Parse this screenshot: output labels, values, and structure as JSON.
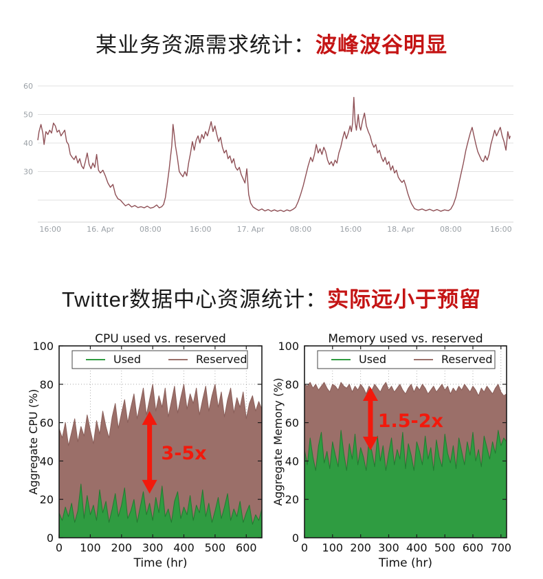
{
  "page": {
    "background": "#ffffff"
  },
  "section1": {
    "title_prefix": "某业务资源需求统计：",
    "title_highlight": "波峰波谷明显",
    "highlight_color": "#c41414"
  },
  "section2": {
    "title_prefix": "Twitter数据中心资源统计：",
    "title_highlight": "实际远小于预留",
    "highlight_color": "#c41414"
  },
  "chart_data": [
    {
      "type": "line",
      "name": "business-resource-demand",
      "line_color": "#8e4f55",
      "grid_color": "#e2e2e2",
      "axis_label_color": "#9aa0a6",
      "y_grid": [
        20,
        30,
        40,
        50,
        60
      ],
      "y_labeled": [
        30,
        40,
        50,
        60
      ],
      "y_range": [
        12.3,
        60
      ],
      "x_range": [
        0,
        76
      ],
      "x_ticks": [
        {
          "t": 2,
          "label": "16:00"
        },
        {
          "t": 10,
          "label": "16. Apr"
        },
        {
          "t": 18,
          "label": "08:00"
        },
        {
          "t": 26,
          "label": "16:00"
        },
        {
          "t": 34,
          "label": "17. Apr"
        },
        {
          "t": 42,
          "label": "08:00"
        },
        {
          "t": 50,
          "label": "16:00"
        },
        {
          "t": 58,
          "label": "18. Apr"
        },
        {
          "t": 66,
          "label": "08:00"
        },
        {
          "t": 74,
          "label": "16:00"
        }
      ],
      "points": [
        [
          0,
          41
        ],
        [
          0.2,
          44
        ],
        [
          0.5,
          46.5
        ],
        [
          0.8,
          43.5
        ],
        [
          1,
          39.5
        ],
        [
          1.3,
          44
        ],
        [
          1.6,
          43
        ],
        [
          1.9,
          44.5
        ],
        [
          2.2,
          43.5
        ],
        [
          2.5,
          47
        ],
        [
          2.8,
          46
        ],
        [
          3.1,
          43.8
        ],
        [
          3.4,
          44.5
        ],
        [
          3.7,
          42.5
        ],
        [
          4,
          43.5
        ],
        [
          4.3,
          44.5
        ],
        [
          4.6,
          40.5
        ],
        [
          4.9,
          39.5
        ],
        [
          5.2,
          36
        ],
        [
          5.5,
          35
        ],
        [
          5.8,
          34.2
        ],
        [
          6.1,
          35.5
        ],
        [
          6.4,
          33
        ],
        [
          6.7,
          34.5
        ],
        [
          7,
          32
        ],
        [
          7.3,
          31
        ],
        [
          7.6,
          33.5
        ],
        [
          7.9,
          36.5
        ],
        [
          8.2,
          32.5
        ],
        [
          8.5,
          31
        ],
        [
          8.8,
          33
        ],
        [
          9.1,
          31.5
        ],
        [
          9.4,
          36
        ],
        [
          9.7,
          30.5
        ],
        [
          10,
          29.5
        ],
        [
          10.4,
          30.5
        ],
        [
          10.8,
          28.5
        ],
        [
          11.2,
          26
        ],
        [
          11.6,
          24.5
        ],
        [
          12,
          25.5
        ],
        [
          12.4,
          22
        ],
        [
          12.8,
          20.5
        ],
        [
          13.2,
          20
        ],
        [
          13.6,
          19
        ],
        [
          14,
          18
        ],
        [
          14.5,
          18.6
        ],
        [
          15,
          17.6
        ],
        [
          15.5,
          18.1
        ],
        [
          16,
          17.4
        ],
        [
          16.5,
          17.7
        ],
        [
          17,
          17.3
        ],
        [
          17.5,
          17.9
        ],
        [
          18,
          17.2
        ],
        [
          18.5,
          17.5
        ],
        [
          19,
          18.3
        ],
        [
          19.4,
          17.3
        ],
        [
          19.8,
          17.7
        ],
        [
          20.1,
          18.5
        ],
        [
          20.4,
          21
        ],
        [
          20.7,
          26
        ],
        [
          21,
          31
        ],
        [
          21.2,
          35
        ],
        [
          21.4,
          39
        ],
        [
          21.6,
          46.5
        ],
        [
          21.8,
          43
        ],
        [
          22,
          39
        ],
        [
          22.3,
          35
        ],
        [
          22.6,
          30
        ],
        [
          22.9,
          29
        ],
        [
          23.2,
          28.2
        ],
        [
          23.5,
          30
        ],
        [
          23.8,
          28.5
        ],
        [
          24.1,
          33
        ],
        [
          24.4,
          36.5
        ],
        [
          24.7,
          40.5
        ],
        [
          25,
          37.5
        ],
        [
          25.3,
          41
        ],
        [
          25.6,
          42.5
        ],
        [
          25.9,
          40
        ],
        [
          26.2,
          43
        ],
        [
          26.5,
          41.5
        ],
        [
          26.8,
          44
        ],
        [
          27.1,
          42.5
        ],
        [
          27.4,
          45
        ],
        [
          27.7,
          47.5
        ],
        [
          28,
          44
        ],
        [
          28.3,
          46
        ],
        [
          28.6,
          43
        ],
        [
          28.9,
          40.5
        ],
        [
          29.2,
          42
        ],
        [
          29.5,
          38.5
        ],
        [
          29.8,
          36.5
        ],
        [
          30.1,
          37.5
        ],
        [
          30.4,
          34.5
        ],
        [
          30.7,
          35.5
        ],
        [
          31,
          33
        ],
        [
          31.3,
          34.5
        ],
        [
          31.6,
          31.5
        ],
        [
          31.9,
          30.5
        ],
        [
          32.2,
          31.5
        ],
        [
          32.5,
          29
        ],
        [
          32.8,
          27.5
        ],
        [
          33.1,
          26
        ],
        [
          33.4,
          31
        ],
        [
          33.7,
          22
        ],
        [
          34,
          19
        ],
        [
          34.4,
          17.6
        ],
        [
          34.8,
          17
        ],
        [
          35.3,
          16.4
        ],
        [
          35.8,
          16.9
        ],
        [
          36.3,
          16.2
        ],
        [
          36.8,
          16.7
        ],
        [
          37.3,
          16.1
        ],
        [
          37.8,
          16.6
        ],
        [
          38.3,
          16.1
        ],
        [
          38.8,
          16.5
        ],
        [
          39.3,
          16
        ],
        [
          39.8,
          16.6
        ],
        [
          40.3,
          16.2
        ],
        [
          40.8,
          16.8
        ],
        [
          41.2,
          17.5
        ],
        [
          41.6,
          19.5
        ],
        [
          42,
          22
        ],
        [
          42.4,
          25
        ],
        [
          42.8,
          28.5
        ],
        [
          43.2,
          32
        ],
        [
          43.6,
          35
        ],
        [
          43.9,
          33.5
        ],
        [
          44.2,
          36
        ],
        [
          44.5,
          39.5
        ],
        [
          44.8,
          36.5
        ],
        [
          45.1,
          38
        ],
        [
          45.4,
          36
        ],
        [
          45.7,
          38.5
        ],
        [
          46,
          37
        ],
        [
          46.3,
          34
        ],
        [
          46.6,
          32.5
        ],
        [
          46.9,
          33.5
        ],
        [
          47.2,
          32
        ],
        [
          47.5,
          34
        ],
        [
          47.8,
          33
        ],
        [
          48.1,
          36.5
        ],
        [
          48.4,
          38.5
        ],
        [
          48.7,
          41.5
        ],
        [
          49,
          44
        ],
        [
          49.3,
          41.5
        ],
        [
          49.6,
          43.5
        ],
        [
          49.9,
          46
        ],
        [
          50.1,
          44
        ],
        [
          50.3,
          47
        ],
        [
          50.5,
          56
        ],
        [
          50.7,
          47.5
        ],
        [
          50.9,
          44.5
        ],
        [
          51.2,
          50
        ],
        [
          51.4,
          46
        ],
        [
          51.6,
          44.5
        ],
        [
          51.9,
          48
        ],
        [
          52.2,
          50.5
        ],
        [
          52.5,
          46
        ],
        [
          52.8,
          44
        ],
        [
          53.1,
          42.5
        ],
        [
          53.4,
          40
        ],
        [
          53.7,
          38.5
        ],
        [
          54,
          39.5
        ],
        [
          54.3,
          36.5
        ],
        [
          54.6,
          37.5
        ],
        [
          54.9,
          35
        ],
        [
          55.2,
          33.5
        ],
        [
          55.5,
          35
        ],
        [
          55.8,
          32.5
        ],
        [
          56.1,
          33.5
        ],
        [
          56.4,
          30.5
        ],
        [
          56.7,
          32
        ],
        [
          57,
          29.5
        ],
        [
          57.3,
          30.5
        ],
        [
          57.6,
          28
        ],
        [
          57.9,
          27
        ],
        [
          58.2,
          26.2
        ],
        [
          58.5,
          27
        ],
        [
          58.8,
          25
        ],
        [
          59.1,
          22.5
        ],
        [
          59.4,
          20.5
        ],
        [
          59.7,
          18.8
        ],
        [
          60.2,
          17
        ],
        [
          60.8,
          16.5
        ],
        [
          61.4,
          16.9
        ],
        [
          62,
          16.3
        ],
        [
          62.6,
          16.8
        ],
        [
          63.2,
          16.2
        ],
        [
          63.8,
          16.7
        ],
        [
          64.4,
          16.1
        ],
        [
          65,
          16.6
        ],
        [
          65.6,
          16.3
        ],
        [
          66,
          16.9
        ],
        [
          66.4,
          18.5
        ],
        [
          66.8,
          21
        ],
        [
          67.2,
          25
        ],
        [
          67.6,
          29
        ],
        [
          68,
          33
        ],
        [
          68.4,
          37.5
        ],
        [
          68.8,
          41
        ],
        [
          69.1,
          43.5
        ],
        [
          69.4,
          45.5
        ],
        [
          69.7,
          42.5
        ],
        [
          70,
          39.5
        ],
        [
          70.3,
          37
        ],
        [
          70.6,
          35.5
        ],
        [
          70.9,
          34
        ],
        [
          71.2,
          33.5
        ],
        [
          71.5,
          35.5
        ],
        [
          71.8,
          34
        ],
        [
          72.1,
          36
        ],
        [
          72.4,
          39.5
        ],
        [
          72.7,
          42
        ],
        [
          73,
          44.5
        ],
        [
          73.3,
          42.5
        ],
        [
          73.6,
          44
        ],
        [
          73.9,
          45.5
        ],
        [
          74.2,
          42.5
        ],
        [
          74.5,
          40.5
        ],
        [
          74.8,
          37.5
        ],
        [
          75.1,
          44
        ],
        [
          75.35,
          41.5
        ],
        [
          75.5,
          42.5
        ]
      ]
    },
    {
      "type": "area",
      "name": "cpu-used-vs-reserved",
      "title": "CPU used vs. reserved",
      "xlabel": "Time (hr)",
      "ylabel": "Aggregate CPU (%)",
      "legend": [
        "Used",
        "Reserved"
      ],
      "x_ticks": [
        0,
        100,
        200,
        300,
        400,
        500,
        600
      ],
      "y_ticks": [
        0,
        20,
        40,
        60,
        80,
        100
      ],
      "x_range": [
        0,
        650
      ],
      "y_range": [
        0,
        100
      ],
      "x_step": 10,
      "series": [
        {
          "name": "Reserved",
          "color": "#9b6f69",
          "edge": "#8a5f5a",
          "values": [
            57,
            52,
            60,
            48,
            55,
            62,
            50,
            58,
            53,
            64,
            56,
            49,
            61,
            54,
            66,
            58,
            52,
            63,
            70,
            57,
            65,
            72,
            60,
            68,
            75,
            62,
            70,
            78,
            64,
            72,
            80,
            66,
            74,
            68,
            78,
            63,
            71,
            79,
            65,
            73,
            80,
            67,
            75,
            70,
            78,
            64,
            72,
            79,
            66,
            74,
            80,
            68,
            76,
            63,
            72,
            78,
            65,
            73,
            68,
            76,
            62,
            70,
            74,
            66,
            71,
            67
          ]
        },
        {
          "name": "Used",
          "color": "#2f9c41",
          "edge": "#217a30",
          "values": [
            13,
            9,
            16,
            11,
            18,
            8,
            14,
            28,
            10,
            22,
            12,
            17,
            9,
            25,
            13,
            19,
            8,
            15,
            23,
            11,
            17,
            26,
            10,
            14,
            20,
            8,
            16,
            24,
            12,
            18,
            9,
            21,
            13,
            27,
            11,
            15,
            8,
            19,
            24,
            10,
            16,
            12,
            22,
            9,
            17,
            13,
            25,
            11,
            18,
            8,
            14,
            21,
            10,
            16,
            23,
            9,
            15,
            11,
            19,
            8,
            13,
            17,
            7,
            12,
            9,
            15
          ]
        }
      ],
      "annotation": {
        "text": "3-5x",
        "color": "#f2190c",
        "arrow_x": 290,
        "arrow_y_top": 66,
        "arrow_y_bottom": 23,
        "text_x": 400,
        "text_y": 44
      }
    },
    {
      "type": "area",
      "name": "memory-used-vs-reserved",
      "title": "Memory used vs. reserved",
      "xlabel": "Time (hr)",
      "ylabel": "Aggregate Memory (%)",
      "legend": [
        "Used",
        "Reserved"
      ],
      "x_ticks": [
        0,
        100,
        200,
        300,
        400,
        500,
        600,
        700
      ],
      "y_ticks": [
        0,
        20,
        40,
        60,
        80,
        100
      ],
      "x_range": [
        0,
        720
      ],
      "y_range": [
        0,
        100
      ],
      "x_step": 10,
      "series": [
        {
          "name": "Reserved",
          "color": "#9b6f69",
          "edge": "#8a5f5a",
          "values": [
            80,
            79,
            81,
            78,
            80,
            77,
            79,
            81,
            78,
            76,
            80,
            79,
            77,
            81,
            79,
            78,
            80,
            76,
            79,
            77,
            80,
            78,
            75,
            79,
            77,
            80,
            78,
            76,
            79,
            81,
            77,
            79,
            76,
            78,
            80,
            77,
            75,
            78,
            80,
            76,
            79,
            77,
            80,
            78,
            75,
            77,
            79,
            76,
            78,
            80,
            77,
            79,
            75,
            78,
            76,
            79,
            77,
            80,
            78,
            76,
            79,
            77,
            74,
            78,
            76,
            79,
            77,
            75,
            78,
            80,
            76,
            74,
            75
          ]
        },
        {
          "name": "Used",
          "color": "#2f9c41",
          "edge": "#217a30",
          "values": [
            46,
            38,
            52,
            42,
            35,
            48,
            55,
            39,
            45,
            36,
            50,
            43,
            37,
            56,
            44,
            35,
            49,
            41,
            54,
            38,
            47,
            42,
            35,
            51,
            45,
            37,
            53,
            40,
            48,
            35,
            44,
            52,
            38,
            46,
            41,
            55,
            36,
            49,
            43,
            35,
            50,
            45,
            38,
            53,
            41,
            47,
            35,
            51,
            42,
            37,
            54,
            44,
            39,
            48,
            36,
            52,
            45,
            38,
            50,
            43,
            55,
            40,
            46,
            37,
            53,
            47,
            41,
            50,
            44,
            56,
            48,
            52,
            50
          ]
        }
      ],
      "annotation": {
        "text": "1.5-2x",
        "color": "#f2190c",
        "arrow_x": 235,
        "arrow_y_top": 78.5,
        "arrow_y_bottom": 45.5,
        "text_x": 378,
        "text_y": 61
      }
    }
  ]
}
